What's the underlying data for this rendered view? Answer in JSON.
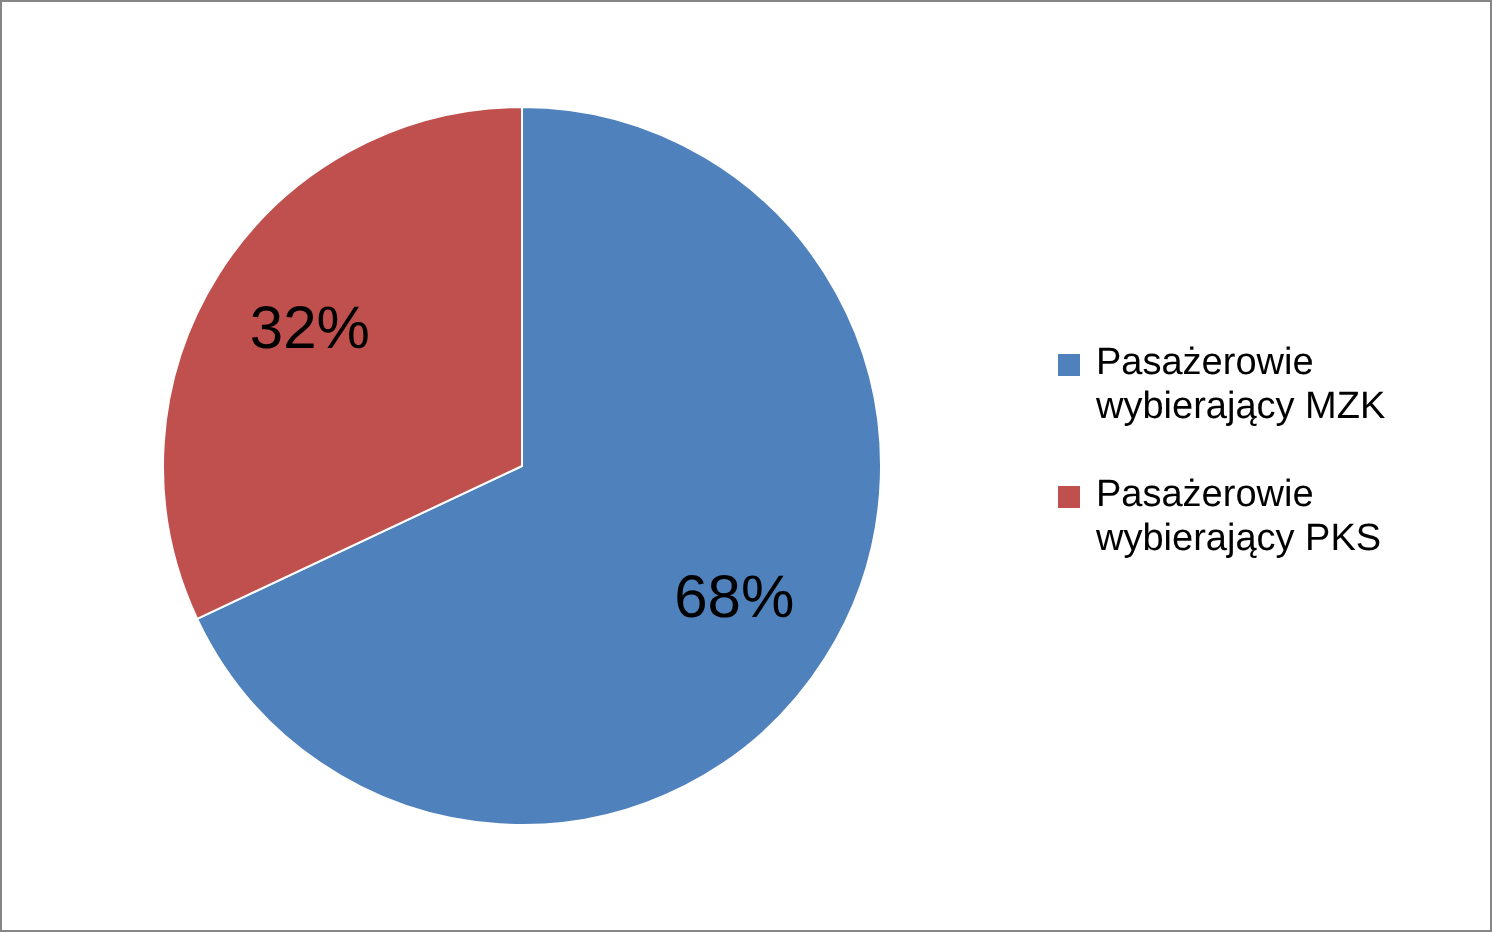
{
  "chart_data": {
    "type": "pie",
    "categories": [
      "Pasażerowie wybierający MZK",
      "Pasażerowie wybierający PKS"
    ],
    "values": [
      68,
      32
    ],
    "colors": [
      "#4f81bd",
      "#c0504d"
    ],
    "value_labels": [
      "68%",
      "32%"
    ],
    "legend": "right"
  }
}
